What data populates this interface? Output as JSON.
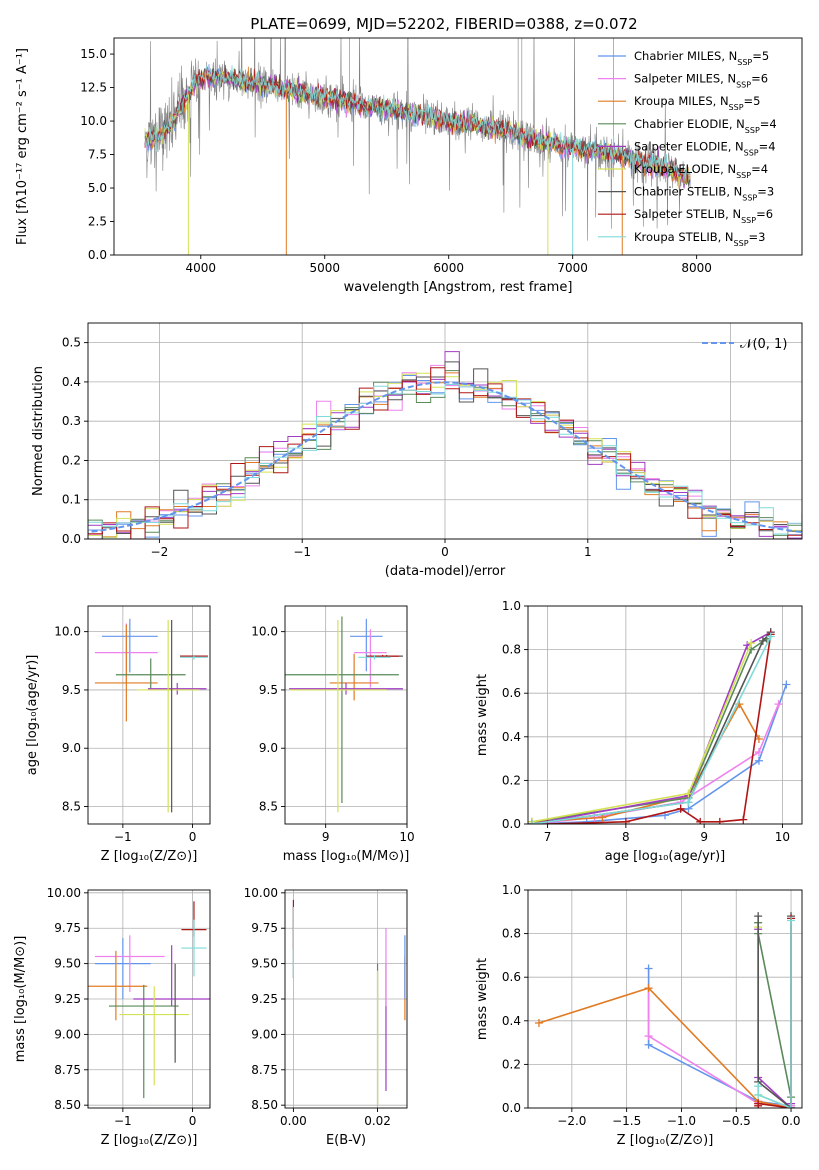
{
  "figure_title": "PLATE=0699, MJD=52202, FIBERID=0388, z=0.072",
  "colors": {
    "chabrier_miles": "#6495ed",
    "salpeter_miles": "#ee82ee",
    "kroupa_miles": "#e07b24",
    "chabrier_elodie": "#5a8a5a",
    "salpeter_elodie": "#a23cc4",
    "kroupa_elodie": "#d4e157",
    "chabrier_stelib": "#555555",
    "salpeter_stelib": "#b01616",
    "kroupa_stelib": "#7fdada",
    "data": "#808080",
    "grid": "#b0b0b0"
  },
  "chart_data": [
    {
      "id": "spectrum",
      "type": "line",
      "title": "PLATE=0699, MJD=52202, FIBERID=0388, z=0.072",
      "xlabel": "wavelength [Angstrom, rest frame]",
      "ylabel": "Flux [fλ10⁻¹⁷ erg cm⁻² s⁻¹ A⁻¹]",
      "xlim": [
        3300,
        8850
      ],
      "ylim": [
        0,
        16.2
      ],
      "xticks": [
        4000,
        5000,
        6000,
        7000,
        8000
      ],
      "xtick_labels": [
        "4000",
        "5000",
        "6000",
        "7000",
        "8000"
      ],
      "yticks": [
        0.0,
        2.5,
        5.0,
        7.5,
        10.0,
        12.5,
        15.0
      ],
      "ytick_labels": [
        "0.0",
        "2.5",
        "5.0",
        "7.5",
        "10.0",
        "12.5",
        "15.0"
      ],
      "continuum": {
        "x": [
          3550,
          3650,
          3750,
          3850,
          3950,
          4050,
          4150,
          4300,
          4500,
          4700,
          4900,
          5100,
          5300,
          5500,
          5800,
          6100,
          6400,
          6700,
          7000,
          7200,
          7400,
          7600,
          7800,
          7950
        ],
        "y": [
          8.6,
          8.8,
          9.5,
          11.2,
          12.8,
          13.4,
          13.3,
          13.0,
          12.7,
          12.3,
          11.9,
          11.6,
          11.2,
          10.9,
          10.4,
          9.9,
          9.4,
          8.6,
          8.0,
          7.8,
          7.4,
          6.9,
          6.3,
          5.7
        ]
      },
      "legend": [
        {
          "label": "Chabrier MILES, N",
          "sub": "SSP",
          "suffix": "=5",
          "color": "chabrier_miles"
        },
        {
          "label": "Salpeter MILES, N",
          "sub": "SSP",
          "suffix": "=6",
          "color": "salpeter_miles"
        },
        {
          "label": "Kroupa MILES, N",
          "sub": "SSP",
          "suffix": "=5",
          "color": "kroupa_miles"
        },
        {
          "label": "Chabrier ELODIE, N",
          "sub": "SSP",
          "suffix": "=4",
          "color": "chabrier_elodie"
        },
        {
          "label": "Salpeter ELODIE, N",
          "sub": "SSP",
          "suffix": "=4",
          "color": "salpeter_elodie"
        },
        {
          "label": "Kroupa ELODIE, N",
          "sub": "SSP",
          "suffix": "=4",
          "color": "kroupa_elodie"
        },
        {
          "label": "Chabrier STELIB, N",
          "sub": "SSP",
          "suffix": "=3",
          "color": "chabrier_stelib"
        },
        {
          "label": "Salpeter STELIB, N",
          "sub": "SSP",
          "suffix": "=6",
          "color": "salpeter_stelib"
        },
        {
          "label": "Kroupa STELIB, N",
          "sub": "SSP",
          "suffix": "=3",
          "color": "kroupa_stelib"
        }
      ],
      "legend_placement": "top-right",
      "grid": false
    },
    {
      "id": "residuals",
      "type": "histogram",
      "xlabel": "(data-model)/error",
      "ylabel": "Normed distribution",
      "xlim": [
        -2.5,
        2.5
      ],
      "ylim": [
        0,
        0.55
      ],
      "xticks": [
        -2,
        -1,
        0,
        1,
        2
      ],
      "xtick_labels": [
        "−2",
        "−1",
        "0",
        "1",
        "2"
      ],
      "yticks": [
        0.0,
        0.1,
        0.2,
        0.3,
        0.4,
        0.5
      ],
      "ytick_labels": [
        "0.0",
        "0.1",
        "0.2",
        "0.3",
        "0.4",
        "0.5"
      ],
      "bin_width": 0.1,
      "reference_label": "𝒩(0, 1)",
      "reference_color": "#6495ed",
      "legend_placement": "top-right",
      "grid": true
    },
    {
      "id": "age_vs_z",
      "type": "scatter",
      "xlabel": "Z [log₁₀(Z/Z⊙)]",
      "ylabel": "age  [log₁₀(age/yr)]",
      "xlim": [
        -1.5,
        0.25
      ],
      "ylim": [
        8.35,
        10.22
      ],
      "xticks": [
        -1,
        0
      ],
      "xtick_labels": [
        "−1",
        "0"
      ],
      "yticks": [
        8.5,
        9.0,
        9.5,
        10.0
      ],
      "ytick_labels": [
        "8.5",
        "9.0",
        "9.5",
        "10.0"
      ],
      "grid": true,
      "points": [
        {
          "series": "chabrier_miles",
          "x": -0.9,
          "y": 9.96,
          "xerr": 0.4,
          "yerr_lo": 0.31,
          "yerr_hi": 0.15
        },
        {
          "series": "salpeter_miles",
          "x": -0.95,
          "y": 9.82,
          "xerr": 0.45,
          "yerr_lo": 0.27,
          "yerr_hi": 0.25
        },
        {
          "series": "kroupa_miles",
          "x": -0.95,
          "y": 9.56,
          "xerr": 0.45,
          "yerr_lo": 0.33,
          "yerr_hi": 0.5
        },
        {
          "series": "chabrier_elodie",
          "x": -0.6,
          "y": 9.63,
          "xerr": 0.5,
          "yerr_lo": 0.12,
          "yerr_hi": 0.14
        },
        {
          "series": "salpeter_elodie",
          "x": -0.22,
          "y": 9.51,
          "xerr": 0.42,
          "yerr_lo": 0.05,
          "yerr_hi": 0.05
        },
        {
          "series": "kroupa_elodie",
          "x": -0.35,
          "y": 9.5,
          "xerr": 0.45,
          "yerr_lo": 1.05,
          "yerr_hi": 0.6
        },
        {
          "series": "chabrier_stelib",
          "x": -0.3,
          "y": 9.5,
          "xerr": 0.0,
          "yerr_lo": 1.05,
          "yerr_hi": 0.6
        },
        {
          "series": "salpeter_stelib",
          "x": 0.02,
          "y": 9.79,
          "xerr": 0.2,
          "yerr_lo": 0.01,
          "yerr_hi": 0.01
        },
        {
          "series": "kroupa_stelib",
          "x": 0.02,
          "y": 9.78,
          "xerr": 0.2,
          "yerr_lo": 0.02,
          "yerr_hi": 0.02
        }
      ]
    },
    {
      "id": "age_vs_mass",
      "type": "scatter",
      "xlabel": "mass [log₁₀(M/M⊙)]",
      "ylabel": "",
      "xlim": [
        8.5,
        10.0
      ],
      "ylim": [
        8.35,
        10.22
      ],
      "xticks": [
        9,
        10
      ],
      "xtick_labels": [
        "9",
        "10"
      ],
      "yticks": [
        8.5,
        9.0,
        9.5,
        10.0
      ],
      "ytick_labels": [
        "8.5",
        "9.0",
        "9.5",
        "10.0"
      ],
      "grid": true,
      "points": [
        {
          "series": "chabrier_miles",
          "x": 9.5,
          "y": 9.96,
          "xerr": 0.2,
          "yerr_lo": 0.3,
          "yerr_hi": 0.15
        },
        {
          "series": "salpeter_miles",
          "x": 9.55,
          "y": 9.82,
          "xerr": 0.2,
          "yerr_lo": 0.3,
          "yerr_hi": 0.2
        },
        {
          "series": "kroupa_miles",
          "x": 9.35,
          "y": 9.56,
          "xerr": 0.3,
          "yerr_lo": 0.15,
          "yerr_hi": 0.25
        },
        {
          "series": "chabrier_elodie",
          "x": 9.2,
          "y": 9.63,
          "xerr": 0.7,
          "yerr_lo": 1.1,
          "yerr_hi": 0.5
        },
        {
          "series": "salpeter_elodie",
          "x": 9.25,
          "y": 9.51,
          "xerr": 0.7,
          "yerr_lo": 0.05,
          "yerr_hi": 0.05
        },
        {
          "series": "kroupa_elodie",
          "x": 9.15,
          "y": 9.5,
          "xerr": 0.6,
          "yerr_lo": 1.05,
          "yerr_hi": 0.6
        },
        {
          "series": "chabrier_stelib",
          "x": 9.75,
          "y": 9.79,
          "xerr": 0.2,
          "yerr_lo": 0.01,
          "yerr_hi": 0.01
        },
        {
          "series": "salpeter_stelib",
          "x": 9.7,
          "y": 9.79,
          "xerr": 0.2,
          "yerr_lo": 0.01,
          "yerr_hi": 0.01
        },
        {
          "series": "kroupa_stelib",
          "x": 9.6,
          "y": 9.78,
          "xerr": 0.2,
          "yerr_lo": 0.02,
          "yerr_hi": 0.02
        }
      ]
    },
    {
      "id": "weight_vs_age",
      "type": "line",
      "xlabel": "age  [log₁₀(age/yr)]",
      "ylabel": "mass weight",
      "xlim": [
        6.75,
        10.25
      ],
      "ylim": [
        0,
        1.0
      ],
      "xticks": [
        7,
        8,
        9,
        10
      ],
      "xtick_labels": [
        "7",
        "8",
        "9",
        "10"
      ],
      "yticks": [
        0.0,
        0.2,
        0.4,
        0.6,
        0.8,
        1.0
      ],
      "ytick_labels": [
        "0.0",
        "0.2",
        "0.4",
        "0.6",
        "0.8",
        "1.0"
      ],
      "grid": true,
      "series": [
        {
          "color": "chabrier_miles",
          "x": [
            6.8,
            7.5,
            8.5,
            8.8,
            9.7,
            10.05
          ],
          "y": [
            0.0,
            0.01,
            0.04,
            0.07,
            0.29,
            0.64
          ]
        },
        {
          "color": "salpeter_miles",
          "x": [
            6.8,
            7.6,
            8.7,
            9.7,
            9.95
          ],
          "y": [
            0.0,
            0.03,
            0.1,
            0.33,
            0.55
          ]
        },
        {
          "color": "kroupa_miles",
          "x": [
            6.8,
            7.7,
            8.8,
            9.45,
            9.7
          ],
          "y": [
            0.01,
            0.03,
            0.13,
            0.55,
            0.39
          ]
        },
        {
          "color": "chabrier_elodie",
          "x": [
            6.8,
            8.8,
            9.6,
            9.8
          ],
          "y": [
            0.01,
            0.12,
            0.8,
            0.85
          ]
        },
        {
          "color": "salpeter_elodie",
          "x": [
            6.8,
            8.8,
            9.55,
            9.85
          ],
          "y": [
            0.0,
            0.13,
            0.82,
            0.88
          ]
        },
        {
          "color": "kroupa_elodie",
          "x": [
            6.8,
            8.8,
            9.6
          ],
          "y": [
            0.01,
            0.14,
            0.83
          ]
        },
        {
          "color": "chabrier_stelib",
          "x": [
            6.8,
            8.8,
            9.75,
            9.85
          ],
          "y": [
            0.0,
            0.1,
            0.84,
            0.88
          ]
        },
        {
          "color": "salpeter_stelib",
          "x": [
            7.0,
            8.0,
            8.7,
            8.95,
            9.2,
            9.5,
            9.85
          ],
          "y": [
            0.0,
            0.01,
            0.07,
            0.01,
            0.01,
            0.02,
            0.87
          ]
        },
        {
          "color": "kroupa_stelib",
          "x": [
            6.8,
            8.8,
            9.85
          ],
          "y": [
            0.0,
            0.1,
            0.86
          ]
        }
      ]
    },
    {
      "id": "mass_vs_z",
      "type": "scatter",
      "xlabel": "Z [log₁₀(Z/Z⊙)]",
      "ylabel": "mass [log₁₀(M/M⊙)]",
      "xlim": [
        -1.5,
        0.25
      ],
      "ylim": [
        8.48,
        10.02
      ],
      "xticks": [
        -1,
        0
      ],
      "xtick_labels": [
        "−1",
        "0"
      ],
      "yticks": [
        8.5,
        8.75,
        9.0,
        9.25,
        9.5,
        9.75,
        10.0
      ],
      "ytick_labels": [
        "8.50",
        "8.75",
        "9.00",
        "9.25",
        "9.50",
        "9.75",
        "10.00"
      ],
      "grid": true,
      "points": [
        {
          "series": "chabrier_miles",
          "x": -1.0,
          "y": 9.5,
          "xerr": 0.4,
          "yerr_lo": 0.25,
          "yerr_hi": 0.18
        },
        {
          "series": "salpeter_miles",
          "x": -0.9,
          "y": 9.55,
          "xerr": 0.5,
          "yerr_lo": 0.25,
          "yerr_hi": 0.15
        },
        {
          "series": "kroupa_miles",
          "x": -1.1,
          "y": 9.34,
          "xerr": 0.45,
          "yerr_lo": 0.24,
          "yerr_hi": 0.25
        },
        {
          "series": "chabrier_elodie",
          "x": -0.7,
          "y": 9.2,
          "xerr": 0.5,
          "yerr_lo": 0.65,
          "yerr_hi": 0.15
        },
        {
          "series": "salpeter_elodie",
          "x": -0.3,
          "y": 9.25,
          "xerr": 0.55,
          "yerr_lo": 0.05,
          "yerr_hi": 0.38
        },
        {
          "series": "kroupa_elodie",
          "x": -0.55,
          "y": 9.14,
          "xerr": 0.5,
          "yerr_lo": 0.5,
          "yerr_hi": 0.2
        },
        {
          "series": "chabrier_stelib",
          "x": -0.25,
          "y": 9.4,
          "xerr": 0.0,
          "yerr_lo": 0.6,
          "yerr_hi": 0.1
        },
        {
          "series": "salpeter_stelib",
          "x": 0.02,
          "y": 9.74,
          "xerr": 0.18,
          "yerr_lo": 0.05,
          "yerr_hi": 0.2
        },
        {
          "series": "kroupa_stelib",
          "x": 0.02,
          "y": 9.61,
          "xerr": 0.18,
          "yerr_lo": 0.2,
          "yerr_hi": 0.2
        }
      ]
    },
    {
      "id": "mass_vs_ebv",
      "type": "scatter",
      "xlabel": "E(B-V)",
      "ylabel": "",
      "xlim": [
        -0.002,
        0.027
      ],
      "ylim": [
        8.48,
        10.02
      ],
      "xticks": [
        0.0,
        0.02
      ],
      "xtick_labels": [
        "0.00",
        "0.02"
      ],
      "yticks": [
        8.5,
        8.75,
        9.0,
        9.25,
        9.5,
        9.75,
        10.0
      ],
      "ytick_labels": [
        "8.50",
        "8.75",
        "9.00",
        "9.25",
        "9.50",
        "9.75",
        "10.00"
      ],
      "grid": true,
      "points": [
        {
          "series": "chabrier_stelib",
          "x": 0.0,
          "y": 9.55,
          "xerr": 0,
          "yerr_lo": 0.15,
          "yerr_hi": 0.35
        },
        {
          "series": "salpeter_stelib",
          "x": 0.0,
          "y": 9.8,
          "xerr": 0,
          "yerr_lo": 0.2,
          "yerr_hi": 0.15
        },
        {
          "series": "kroupa_stelib",
          "x": 0.0,
          "y": 9.55,
          "xerr": 0,
          "yerr_lo": 0.15,
          "yerr_hi": 0.35
        },
        {
          "series": "chabrier_elodie",
          "x": 0.02,
          "y": 9.2,
          "xerr": 0,
          "yerr_lo": 0.7,
          "yerr_hi": 0.3
        },
        {
          "series": "kroupa_elodie",
          "x": 0.02,
          "y": 9.0,
          "xerr": 0,
          "yerr_lo": 0.5,
          "yerr_hi": 0.45
        },
        {
          "series": "salpeter_elodie",
          "x": 0.022,
          "y": 9.2,
          "xerr": 0,
          "yerr_lo": 0.6,
          "yerr_hi": 0.3
        },
        {
          "series": "salpeter_miles",
          "x": 0.022,
          "y": 9.45,
          "xerr": 0,
          "yerr_lo": 0.25,
          "yerr_hi": 0.3
        },
        {
          "series": "kroupa_miles",
          "x": 0.0265,
          "y": 9.3,
          "xerr": 0,
          "yerr_lo": 0.2,
          "yerr_hi": 0.25
        },
        {
          "series": "chabrier_miles",
          "x": 0.0265,
          "y": 9.5,
          "xerr": 0,
          "yerr_lo": 0.25,
          "yerr_hi": 0.2
        }
      ]
    },
    {
      "id": "weight_vs_z",
      "type": "line",
      "xlabel": "Z [log₁₀(Z/Z⊙)]",
      "ylabel": "mass weight",
      "xlim": [
        -2.4,
        0.1
      ],
      "ylim": [
        0,
        1.0
      ],
      "xticks": [
        -2.0,
        -1.5,
        -1.0,
        -0.5,
        0.0
      ],
      "xtick_labels": [
        "−2.0",
        "−1.5",
        "−1.0",
        "−0.5",
        "0.0"
      ],
      "yticks": [
        0.0,
        0.2,
        0.4,
        0.6,
        0.8,
        1.0
      ],
      "ytick_labels": [
        "0.0",
        "0.2",
        "0.4",
        "0.6",
        "0.8",
        "1.0"
      ],
      "grid": true,
      "series": [
        {
          "color": "chabrier_miles",
          "x": [
            -1.3,
            -1.3,
            -0.3,
            0.0,
            0.0
          ],
          "y": [
            0.64,
            0.29,
            0.03,
            0.01,
            0.0
          ]
        },
        {
          "color": "salpeter_miles",
          "x": [
            -1.3,
            -1.3,
            -0.3,
            0.0
          ],
          "y": [
            0.55,
            0.33,
            0.02,
            0.01
          ]
        },
        {
          "color": "kroupa_miles",
          "x": [
            -2.3,
            -1.3,
            -0.3,
            0.0
          ],
          "y": [
            0.39,
            0.55,
            0.03,
            0.0
          ]
        },
        {
          "color": "chabrier_elodie",
          "x": [
            -0.3,
            -0.3,
            0.0,
            0.0
          ],
          "y": [
            0.85,
            0.8,
            0.05,
            0.0
          ]
        },
        {
          "color": "salpeter_elodie",
          "x": [
            -0.3,
            -0.3,
            0.0,
            0.0
          ],
          "y": [
            0.82,
            0.14,
            0.0,
            0.02
          ]
        },
        {
          "color": "kroupa_elodie",
          "x": [
            -0.3,
            -0.3,
            0.0
          ],
          "y": [
            0.83,
            0.06,
            0.0
          ]
        },
        {
          "color": "chabrier_stelib",
          "x": [
            -0.3,
            -0.3,
            0.0,
            0.0
          ],
          "y": [
            0.88,
            0.12,
            0.0,
            0.88
          ]
        },
        {
          "color": "salpeter_stelib",
          "x": [
            -0.3,
            -0.3,
            0.0,
            0.0
          ],
          "y": [
            0.01,
            0.02,
            0.0,
            0.87
          ]
        },
        {
          "color": "kroupa_stelib",
          "x": [
            -0.3,
            -0.3,
            0.0,
            0.0
          ],
          "y": [
            0.1,
            0.06,
            0.0,
            0.86
          ]
        }
      ]
    }
  ]
}
